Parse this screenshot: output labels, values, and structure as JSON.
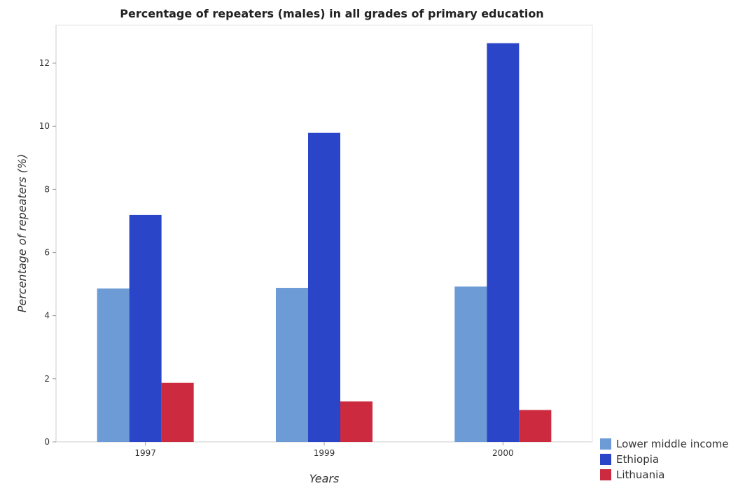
{
  "chart_data": {
    "type": "bar",
    "title": "Percentage of repeaters (males) in all grades of primary education",
    "xlabel": "Years",
    "ylabel": "Percentage of repeaters (%)",
    "categories": [
      "1997",
      "1999",
      "2000"
    ],
    "ylim": [
      0,
      13.2
    ],
    "yticks": [
      0,
      2,
      4,
      6,
      8,
      10,
      12
    ],
    "grid": false,
    "legend_position": "bottom-right",
    "series": [
      {
        "name": "Lower middle income",
        "color": "#6c9bd6",
        "values": [
          4.86,
          4.88,
          4.92
        ]
      },
      {
        "name": "Ethiopia",
        "color": "#2b45c9",
        "values": [
          7.19,
          9.79,
          12.63
        ]
      },
      {
        "name": "Lithuania",
        "color": "#cc2a3e",
        "values": [
          1.87,
          1.28,
          1.01
        ]
      }
    ]
  }
}
